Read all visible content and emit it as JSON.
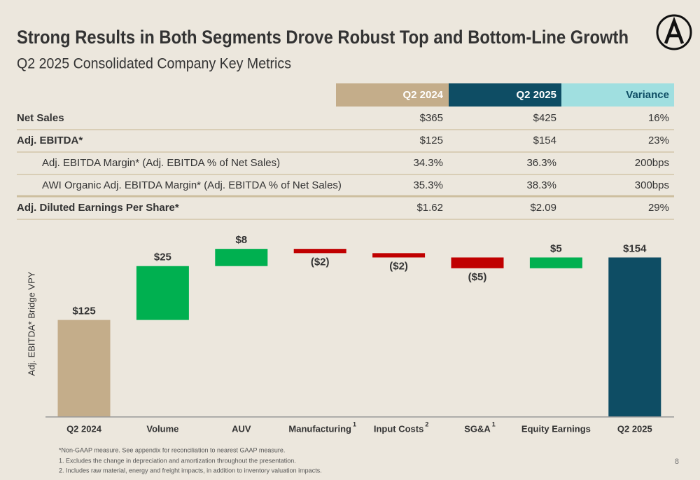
{
  "header": {
    "title": "Strong Results in Both Segments Drove Robust Top and Bottom-Line Growth",
    "subtitle": "Q2 2025 Consolidated Company Key Metrics"
  },
  "table": {
    "columns": [
      "Q2 2024",
      "Q2 2025",
      "Variance"
    ],
    "rows": [
      {
        "label": "Net Sales",
        "cells": [
          "$365",
          "$425",
          "16%"
        ]
      },
      {
        "label": "Adj. EBITDA*",
        "cells": [
          "$125",
          "$154",
          "23%"
        ]
      },
      {
        "label": "Adj. EBITDA Margin* (Adj. EBITDA % of Net Sales)",
        "cells": [
          "34.3%",
          "36.3%",
          "200bps"
        ]
      },
      {
        "label": "AWI Organic Adj. EBITDA Margin* (Adj. EBITDA % of Net Sales)",
        "cells": [
          "35.3%",
          "38.3%",
          "300bps"
        ]
      },
      {
        "label": "Adj. Diluted Earnings Per Share*",
        "cells": [
          "$1.62",
          "$2.09",
          "29%"
        ]
      }
    ]
  },
  "chart_data": {
    "type": "waterfall",
    "y_label": "Adj. EBITDA* Bridge VPY",
    "categories": [
      "Q2 2024",
      "Volume",
      "AUV",
      "Manufacturing",
      "Input Costs",
      "SG&A",
      "Equity Earnings",
      "Q2 2025"
    ],
    "category_notes": [
      null,
      null,
      null,
      "1",
      "2",
      "1",
      null,
      null
    ],
    "values": [
      125,
      25,
      8,
      -2,
      -2,
      -5,
      5,
      154
    ],
    "value_labels": [
      "$125",
      "$25",
      "$8",
      "($2)",
      "($2)",
      "($5)",
      "$5",
      "$154"
    ],
    "bar_types": [
      "total",
      "delta",
      "delta",
      "delta",
      "delta",
      "delta",
      "delta",
      "total"
    ],
    "colors": {
      "start": "#c4ad8a",
      "end": "#0e4d64",
      "increase": "#00b050",
      "decrease": "#c00000"
    },
    "ylim": [
      80,
      160
    ]
  },
  "footnotes": [
    "*Non-GAAP measure. See appendix for reconciliation to nearest GAAP measure.",
    "1. Excludes the change in depreciation and amortization throughout the presentation.",
    "2. Includes raw material, energy and freight impacts, in addition to inventory valuation impacts."
  ],
  "page_number": "8"
}
